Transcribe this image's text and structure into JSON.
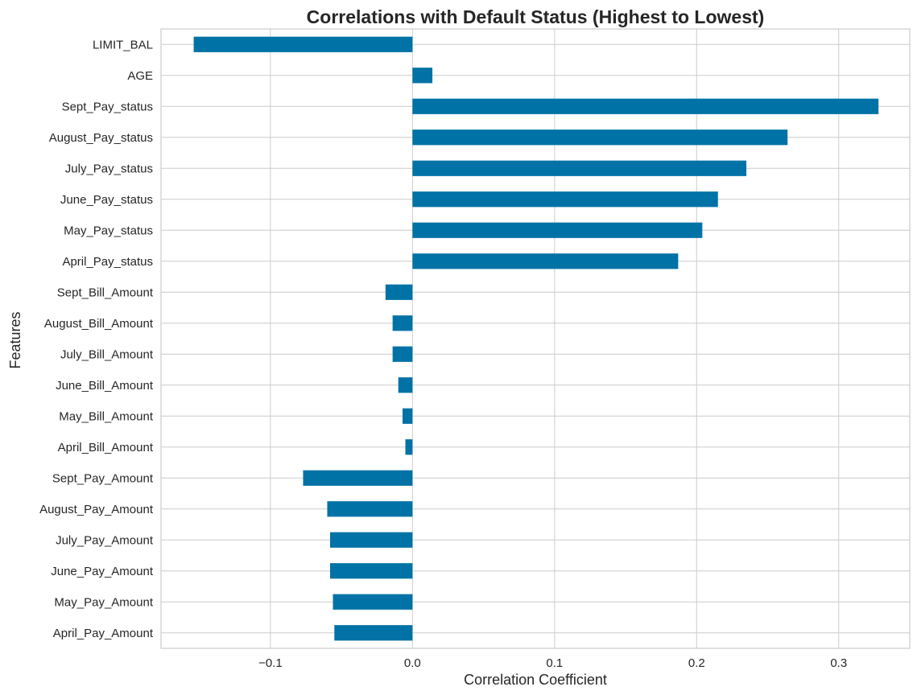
{
  "chart_data": {
    "type": "bar",
    "orientation": "horizontal",
    "title": "Correlations with Default Status (Highest to Lowest)",
    "xlabel": "Correlation Coefficient",
    "ylabel": "Features",
    "xlim": [
      -0.177,
      0.35
    ],
    "xticks": [
      -0.1,
      0.0,
      0.1,
      0.2,
      0.3
    ],
    "xtick_labels": [
      "−0.1",
      "0.0",
      "0.1",
      "0.2",
      "0.3"
    ],
    "grid": true,
    "bar_color": "#0072a6",
    "categories": [
      "LIMIT_BAL",
      "AGE",
      "Sept_Pay_status",
      "August_Pay_status",
      "July_Pay_status",
      "June_Pay_status",
      "May_Pay_status",
      "April_Pay_status",
      "Sept_Bill_Amount",
      "August_Bill_Amount",
      "July_Bill_Amount",
      "June_Bill_Amount",
      "May_Bill_Amount",
      "April_Bill_Amount",
      "Sept_Pay_Amount",
      "August_Pay_Amount",
      "July_Pay_Amount",
      "June_Pay_Amount",
      "May_Pay_Amount",
      "April_Pay_Amount"
    ],
    "values": [
      -0.154,
      0.014,
      0.328,
      0.264,
      0.235,
      0.215,
      0.204,
      0.187,
      -0.019,
      -0.014,
      -0.014,
      -0.01,
      -0.007,
      -0.005,
      -0.077,
      -0.06,
      -0.058,
      -0.058,
      -0.056,
      -0.055
    ]
  }
}
